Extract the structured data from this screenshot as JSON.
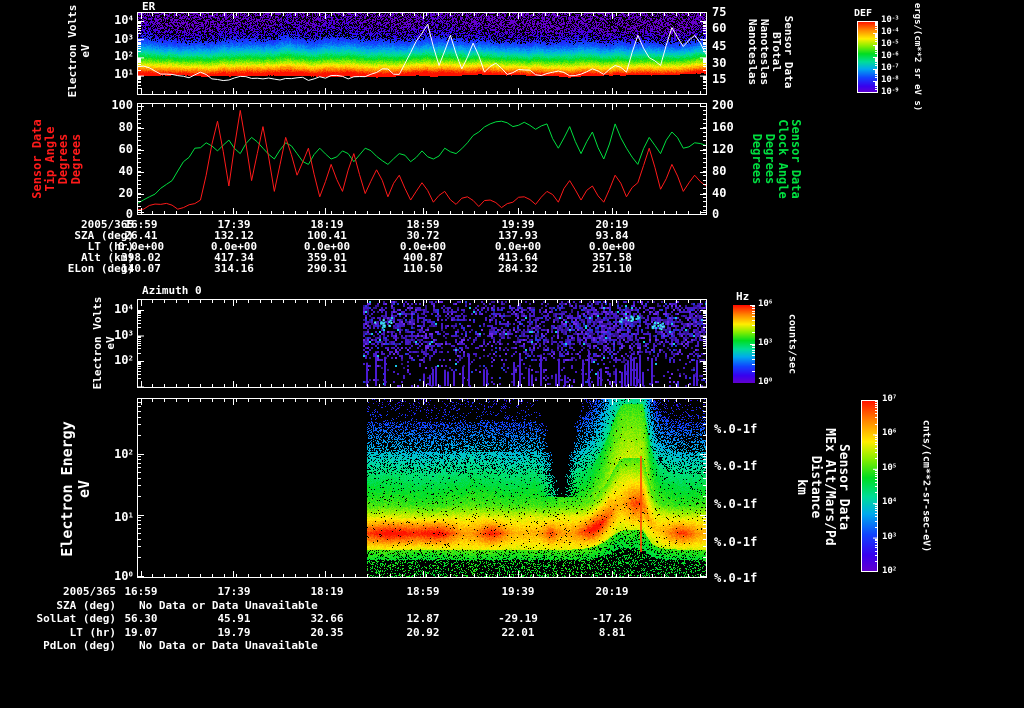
{
  "colors": {
    "background": "#000000",
    "axis_text": "#ffffff",
    "tip_angle": "#ff1a1a",
    "clock_angle": "#00e040",
    "btotal_trace": "#ffffff",
    "palette": [
      "#6600cc",
      "#3800ee",
      "#1144ff",
      "#00aaee",
      "#00dd99",
      "#00dd22",
      "#88ee00",
      "#ffee00",
      "#ff8800",
      "#ff1100"
    ]
  },
  "panels": {
    "er": {
      "title": "ER",
      "ylabel_lines": [
        "Electron Volts",
        "eV"
      ],
      "ytick_exponents": [
        4,
        3,
        2,
        1
      ],
      "right_ticks": [
        "75",
        "60",
        "45",
        "30",
        "15"
      ],
      "right_label_lines": [
        "Sensor Data",
        "BTotal",
        "Nanoteslas",
        "Nanoteslas"
      ],
      "colorbar": {
        "title": "DEF",
        "tick_exponents": [
          -3,
          -4,
          -5,
          -6,
          -7,
          -8,
          -9
        ],
        "unit": "ergs/(cm**2 sr eV s)"
      }
    },
    "angles": {
      "left_ticks": [
        "100",
        "80",
        "60",
        "40",
        "20",
        "0"
      ],
      "left_label_lines": [
        "Sensor Data",
        "Tip Angle",
        "Degrees",
        "Degrees"
      ],
      "right_ticks": [
        "200",
        "160",
        "120",
        "80",
        "40",
        "0"
      ],
      "right_label_lines": [
        "Sensor Data",
        "Clock Angle",
        "Degrees",
        "Degrees"
      ]
    },
    "ephem_top": {
      "rows": [
        {
          "label": "2005/365",
          "values": [
            "16:59",
            "17:39",
            "18:19",
            "18:59",
            "19:39",
            "20:19"
          ]
        },
        {
          "label": "SZA (deg)",
          "values": [
            "26.41",
            "132.12",
            "100.41",
            "30.72",
            "137.93",
            "93.84"
          ]
        },
        {
          "label": "LT (hr)",
          "values": [
            "0.0e+00",
            "0.0e+00",
            "0.0e+00",
            "0.0e+00",
            "0.0e+00",
            "0.0e+00"
          ]
        },
        {
          "label": "Alt (km)",
          "values": [
            "398.02",
            "417.34",
            "359.01",
            "400.87",
            "413.64",
            "357.58"
          ]
        },
        {
          "label": "ELon (deg)",
          "values": [
            "140.07",
            "314.16",
            "290.31",
            "110.50",
            "284.32",
            "251.10"
          ]
        }
      ]
    },
    "azimuth": {
      "title": "Azimuth 0",
      "ylabel_lines": [
        "Electron Volts",
        "eV"
      ],
      "ytick_exponents": [
        4,
        3,
        2
      ],
      "colorbar": {
        "title": "Hz",
        "tick_exponents": [
          6,
          3,
          0
        ],
        "unit": "counts/sec"
      }
    },
    "energy": {
      "ylabel_lines": [
        "Electron Energy",
        "eV"
      ],
      "ytick_exponents": [
        2,
        1,
        0
      ],
      "right_ticks": [
        "%.0-1f",
        "%.0-1f",
        "%.0-1f",
        "%.0-1f",
        "%.0-1f"
      ],
      "right_label_lines": [
        "Sensor Data",
        "MEx Alt/Mars/Pd",
        "Distance",
        "km"
      ],
      "colorbar": {
        "tick_exponents": [
          7,
          6,
          5,
          4,
          3,
          2
        ],
        "unit": "cnts/(cm**2-sr-sec-eV)"
      }
    },
    "ephem_bottom": {
      "no_data_text": "No Data or Data Unavailable",
      "rows": [
        {
          "label": "2005/365",
          "values": [
            "16:59",
            "17:39",
            "18:19",
            "18:59",
            "19:39",
            "20:19"
          ]
        },
        {
          "label": "SZA (deg)",
          "nodata": true
        },
        {
          "label": "SolLat (deg)",
          "values": [
            "56.30",
            "45.91",
            "32.66",
            "12.87",
            "-29.19",
            "-17.26"
          ]
        },
        {
          "label": "LT (hr)",
          "values": [
            "19.07",
            "19.79",
            "20.35",
            "20.92",
            "22.01",
            "8.81"
          ]
        },
        {
          "label": "PdLon (deg)",
          "nodata": true
        }
      ]
    }
  },
  "chart_data": [
    {
      "type": "heatmap",
      "panel": "ER electron energy spectrogram",
      "date": "2005/365",
      "x_ticks": [
        "16:59",
        "17:39",
        "18:19",
        "18:59",
        "19:39",
        "20:19"
      ],
      "ylabel": "Electron Volts eV",
      "y_log_range": [
        1,
        30000
      ],
      "colorbar_title": "DEF",
      "colorbar_unit": "ergs/(cm**2 sr eV s)",
      "colorbar_log_range": [
        -9,
        -3
      ],
      "description": "Continuous rainbow spectrogram: red/orange flux near 10-30 eV, yellow-green 30-300 eV, blue 300-1000 eV, sparse purple speckle above 1 keV, black below 10 eV.",
      "overlay_series": {
        "name": "BTotal",
        "unit": "Nanoteslas",
        "axis_range": [
          15,
          75
        ],
        "color": "#ffffff",
        "points": [
          [
            0,
            27
          ],
          [
            0.03,
            23
          ],
          [
            0.06,
            20
          ],
          [
            0.09,
            17
          ],
          [
            0.11,
            22
          ],
          [
            0.13,
            16
          ],
          [
            0.16,
            15
          ],
          [
            0.19,
            18
          ],
          [
            0.22,
            16
          ],
          [
            0.25,
            15
          ],
          [
            0.28,
            17
          ],
          [
            0.31,
            16
          ],
          [
            0.34,
            19
          ],
          [
            0.37,
            16
          ],
          [
            0.4,
            18
          ],
          [
            0.43,
            25
          ],
          [
            0.46,
            20
          ],
          [
            0.49,
            50
          ],
          [
            0.51,
            65
          ],
          [
            0.53,
            28
          ],
          [
            0.55,
            55
          ],
          [
            0.57,
            25
          ],
          [
            0.59,
            48
          ],
          [
            0.61,
            22
          ],
          [
            0.63,
            30
          ],
          [
            0.65,
            20
          ],
          [
            0.68,
            24
          ],
          [
            0.71,
            19
          ],
          [
            0.74,
            23
          ],
          [
            0.77,
            19
          ],
          [
            0.8,
            25
          ],
          [
            0.82,
            20
          ],
          [
            0.84,
            28
          ],
          [
            0.86,
            22
          ],
          [
            0.88,
            55
          ],
          [
            0.9,
            35
          ],
          [
            0.92,
            28
          ],
          [
            0.94,
            62
          ],
          [
            0.96,
            45
          ],
          [
            0.98,
            55
          ],
          [
            1,
            38
          ]
        ]
      }
    },
    {
      "type": "line",
      "panel": "Magnetic field angles",
      "x_ticks": [
        "16:59",
        "17:39",
        "18:19",
        "18:59",
        "19:39",
        "20:19"
      ],
      "series": [
        {
          "name": "Tip Angle",
          "unit": "Degrees",
          "axis_range": [
            0,
            100
          ],
          "color": "#ff1a1a",
          "points": [
            [
              0,
              3
            ],
            [
              0.04,
              8
            ],
            [
              0.08,
              5
            ],
            [
              0.11,
              12
            ],
            [
              0.14,
              85
            ],
            [
              0.16,
              25
            ],
            [
              0.18,
              95
            ],
            [
              0.2,
              30
            ],
            [
              0.22,
              80
            ],
            [
              0.24,
              20
            ],
            [
              0.26,
              70
            ],
            [
              0.28,
              35
            ],
            [
              0.3,
              60
            ],
            [
              0.32,
              15
            ],
            [
              0.34,
              45
            ],
            [
              0.36,
              20
            ],
            [
              0.38,
              55
            ],
            [
              0.4,
              18
            ],
            [
              0.42,
              40
            ],
            [
              0.44,
              15
            ],
            [
              0.46,
              35
            ],
            [
              0.48,
              12
            ],
            [
              0.5,
              28
            ],
            [
              0.52,
              10
            ],
            [
              0.54,
              20
            ],
            [
              0.56,
              8
            ],
            [
              0.58,
              15
            ],
            [
              0.6,
              6
            ],
            [
              0.62,
              12
            ],
            [
              0.64,
              5
            ],
            [
              0.66,
              10
            ],
            [
              0.68,
              15
            ],
            [
              0.7,
              8
            ],
            [
              0.72,
              20
            ],
            [
              0.74,
              10
            ],
            [
              0.76,
              30
            ],
            [
              0.78,
              12
            ],
            [
              0.8,
              25
            ],
            [
              0.82,
              10
            ],
            [
              0.84,
              35
            ],
            [
              0.86,
              15
            ],
            [
              0.88,
              28
            ],
            [
              0.9,
              60
            ],
            [
              0.92,
              22
            ],
            [
              0.94,
              45
            ],
            [
              0.96,
              20
            ],
            [
              0.98,
              35
            ],
            [
              1,
              25
            ]
          ]
        },
        {
          "name": "Clock Angle",
          "unit": "Degrees",
          "axis_range": [
            0,
            200
          ],
          "color": "#00e040",
          "points": [
            [
              0,
              18
            ],
            [
              0.03,
              35
            ],
            [
              0.06,
              60
            ],
            [
              0.08,
              95
            ],
            [
              0.1,
              120
            ],
            [
              0.12,
              130
            ],
            [
              0.14,
              115
            ],
            [
              0.16,
              135
            ],
            [
              0.18,
              110
            ],
            [
              0.2,
              140
            ],
            [
              0.22,
              120
            ],
            [
              0.24,
              100
            ],
            [
              0.26,
              130
            ],
            [
              0.28,
              110
            ],
            [
              0.3,
              90
            ],
            [
              0.32,
              120
            ],
            [
              0.34,
              100
            ],
            [
              0.36,
              115
            ],
            [
              0.38,
              95
            ],
            [
              0.4,
              120
            ],
            [
              0.42,
              105
            ],
            [
              0.44,
              90
            ],
            [
              0.46,
              110
            ],
            [
              0.48,
              95
            ],
            [
              0.5,
              115
            ],
            [
              0.52,
              100
            ],
            [
              0.54,
              120
            ],
            [
              0.56,
              110
            ],
            [
              0.58,
              130
            ],
            [
              0.6,
              150
            ],
            [
              0.62,
              165
            ],
            [
              0.64,
              170
            ],
            [
              0.66,
              160
            ],
            [
              0.68,
              168
            ],
            [
              0.7,
              155
            ],
            [
              0.72,
              165
            ],
            [
              0.74,
              120
            ],
            [
              0.76,
              160
            ],
            [
              0.78,
              110
            ],
            [
              0.8,
              150
            ],
            [
              0.82,
              100
            ],
            [
              0.84,
              165
            ],
            [
              0.86,
              120
            ],
            [
              0.88,
              90
            ],
            [
              0.9,
              140
            ],
            [
              0.92,
              110
            ],
            [
              0.94,
              150
            ],
            [
              0.96,
              120
            ],
            [
              0.98,
              130
            ],
            [
              1,
              125
            ]
          ]
        }
      ]
    },
    {
      "type": "heatmap",
      "panel": "Azimuth 0 count-rate spectrogram",
      "x_ticks": [
        "16:59",
        "17:39",
        "18:19",
        "18:59",
        "19:39",
        "20:19"
      ],
      "ylabel": "Electron Volts eV",
      "y_log_range": [
        10,
        30000
      ],
      "data_start_fraction": 0.4,
      "colorbar_title": "Hz",
      "colorbar_unit": "counts/sec",
      "colorbar_log_range": [
        0,
        6
      ],
      "description": "No data in left 40%; sparse purple/blue speckle with rare cyan patches and vertical purple streaks at the bottom from ~18:35 onward."
    },
    {
      "type": "heatmap",
      "panel": "Electron Energy flux spectrogram",
      "x_ticks": [
        "16:59",
        "17:39",
        "18:19",
        "18:59",
        "19:39",
        "20:19"
      ],
      "ylabel": "Electron Energy eV",
      "y_log_range": [
        1,
        1000
      ],
      "data_start_fraction": 0.4,
      "colorbar_unit": "cnts/(cm**2-sr-sec-eV)",
      "colorbar_log_range": [
        2,
        7
      ],
      "description": "No data in left 40%; intense red/orange flux band 5-20 eV, green 20-100 eV, blue speckle above 200 eV, green speckle below 3 eV; dark funnel-shaped dropout near 19:55 and bright yellow-green plume reaching high energies near 20:15."
    }
  ]
}
